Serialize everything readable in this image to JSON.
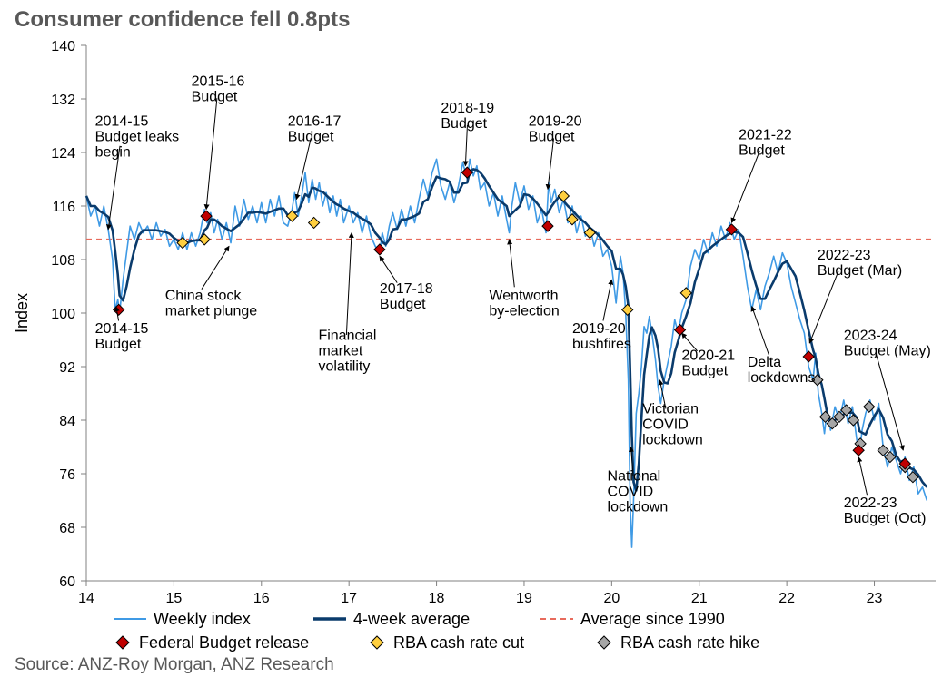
{
  "title": "Consumer confidence fell 0.8pts",
  "source": "Source: ANZ-Roy Morgan, ANZ Research",
  "chart": {
    "type": "line",
    "xlabel": "",
    "ylabel": "Index",
    "xlim": [
      14.0,
      23.7
    ],
    "ylim": [
      60,
      140
    ],
    "xticks": [
      14,
      15,
      16,
      17,
      18,
      19,
      20,
      21,
      22,
      23
    ],
    "yticks": [
      60,
      68,
      76,
      84,
      92,
      100,
      108,
      116,
      124,
      132,
      140
    ],
    "ytick_labels": [
      "60",
      "68",
      "76",
      "84",
      "92",
      "100",
      "108",
      "116",
      "124",
      "132",
      "140"
    ],
    "xtick_labels": [
      "14",
      "15",
      "16",
      "17",
      "18",
      "19",
      "20",
      "21",
      "22",
      "23"
    ],
    "plot_bg": "#ffffff",
    "tick_color": "#808080",
    "axis_color": "#808080",
    "average_since_1990": 111.0,
    "colors": {
      "weekly": "#3f9ae5",
      "avg4": "#0a3b6c",
      "avg_line": "#e86b5c",
      "budget": "#c00000",
      "rate_cut": "#ffcf3f",
      "rate_hike": "#a6a6a6"
    },
    "line_widths": {
      "weekly": 1.6,
      "avg4": 2.6,
      "avg_line": 2.0
    },
    "dash": {
      "avg_line": "6,5"
    },
    "legend": {
      "items": [
        {
          "kind": "line",
          "label": "Weekly index",
          "color": "#3f9ae5",
          "width": 2
        },
        {
          "kind": "line",
          "label": "4-week average",
          "color": "#0a3b6c",
          "width": 3.5
        },
        {
          "kind": "dash",
          "label": "Average since 1990",
          "color": "#e86b5c",
          "width": 2
        },
        {
          "kind": "diamond",
          "label": "Federal Budget release",
          "fill": "#c00000",
          "stroke": "#000000"
        },
        {
          "kind": "diamond",
          "label": "RBA cash rate cut",
          "fill": "#ffcf3f",
          "stroke": "#000000"
        },
        {
          "kind": "diamond",
          "label": "RBA cash rate hike",
          "fill": "#a6a6a6",
          "stroke": "#000000"
        }
      ]
    },
    "weekly": [
      [
        14.0,
        117.5
      ],
      [
        14.05,
        114.5
      ],
      [
        14.1,
        116.0
      ],
      [
        14.15,
        113.0
      ],
      [
        14.2,
        116.0
      ],
      [
        14.25,
        112.5
      ],
      [
        14.3,
        108.0
      ],
      [
        14.33,
        100.5
      ],
      [
        14.36,
        102.0
      ],
      [
        14.38,
        100.0
      ],
      [
        14.42,
        105.0
      ],
      [
        14.46,
        109.0
      ],
      [
        14.5,
        113.0
      ],
      [
        14.55,
        111.0
      ],
      [
        14.6,
        113.5
      ],
      [
        14.65,
        112.0
      ],
      [
        14.7,
        113.0
      ],
      [
        14.75,
        111.0
      ],
      [
        14.8,
        113.5
      ],
      [
        14.85,
        111.5
      ],
      [
        14.9,
        112.5
      ],
      [
        14.95,
        110.0
      ],
      [
        15.0,
        111.0
      ],
      [
        15.05,
        109.5
      ],
      [
        15.1,
        112.0
      ],
      [
        15.15,
        109.5
      ],
      [
        15.2,
        112.0
      ],
      [
        15.25,
        110.0
      ],
      [
        15.3,
        112.0
      ],
      [
        15.35,
        115.5
      ],
      [
        15.38,
        113.5
      ],
      [
        15.42,
        115.0
      ],
      [
        15.46,
        112.0
      ],
      [
        15.5,
        114.0
      ],
      [
        15.55,
        111.0
      ],
      [
        15.6,
        113.5
      ],
      [
        15.65,
        110.5
      ],
      [
        15.7,
        116.0
      ],
      [
        15.75,
        113.0
      ],
      [
        15.8,
        117.0
      ],
      [
        15.85,
        114.0
      ],
      [
        15.9,
        116.0
      ],
      [
        15.95,
        113.5
      ],
      [
        16.0,
        116.5
      ],
      [
        16.05,
        113.5
      ],
      [
        16.1,
        117.0
      ],
      [
        16.15,
        114.5
      ],
      [
        16.2,
        117.5
      ],
      [
        16.25,
        113.5
      ],
      [
        16.3,
        113.0
      ],
      [
        16.35,
        115.5
      ],
      [
        16.38,
        118.0
      ],
      [
        16.42,
        114.5
      ],
      [
        16.46,
        117.5
      ],
      [
        16.5,
        121.0
      ],
      [
        16.54,
        116.5
      ],
      [
        16.58,
        120.0
      ],
      [
        16.62,
        117.0
      ],
      [
        16.66,
        119.5
      ],
      [
        16.7,
        116.0
      ],
      [
        16.74,
        118.0
      ],
      [
        16.78,
        115.0
      ],
      [
        16.82,
        117.5
      ],
      [
        16.86,
        114.5
      ],
      [
        16.9,
        117.0
      ],
      [
        16.94,
        113.5
      ],
      [
        17.0,
        116.0
      ],
      [
        17.05,
        113.5
      ],
      [
        17.1,
        115.0
      ],
      [
        17.15,
        112.0
      ],
      [
        17.2,
        114.5
      ],
      [
        17.25,
        111.5
      ],
      [
        17.3,
        110.0
      ],
      [
        17.35,
        109.0
      ],
      [
        17.38,
        112.0
      ],
      [
        17.42,
        110.0
      ],
      [
        17.46,
        113.0
      ],
      [
        17.5,
        115.0
      ],
      [
        17.55,
        112.5
      ],
      [
        17.6,
        115.5
      ],
      [
        17.65,
        113.0
      ],
      [
        17.7,
        116.0
      ],
      [
        17.75,
        113.5
      ],
      [
        17.8,
        117.0
      ],
      [
        17.85,
        120.0
      ],
      [
        17.9,
        117.5
      ],
      [
        17.95,
        121.0
      ],
      [
        18.0,
        123.0
      ],
      [
        18.05,
        119.0
      ],
      [
        18.1,
        117.0
      ],
      [
        18.15,
        119.5
      ],
      [
        18.2,
        116.5
      ],
      [
        18.25,
        119.0
      ],
      [
        18.3,
        122.5
      ],
      [
        18.35,
        120.0
      ],
      [
        18.38,
        123.0
      ],
      [
        18.42,
        120.5
      ],
      [
        18.46,
        122.0
      ],
      [
        18.5,
        118.5
      ],
      [
        18.55,
        119.5
      ],
      [
        18.6,
        116.0
      ],
      [
        18.65,
        118.0
      ],
      [
        18.7,
        114.5
      ],
      [
        18.75,
        117.5
      ],
      [
        18.8,
        114.0
      ],
      [
        18.83,
        112.0
      ],
      [
        18.86,
        116.0
      ],
      [
        18.9,
        119.5
      ],
      [
        18.95,
        116.5
      ],
      [
        19.0,
        119.0
      ],
      [
        19.05,
        115.5
      ],
      [
        19.1,
        117.5
      ],
      [
        19.15,
        113.5
      ],
      [
        19.2,
        115.5
      ],
      [
        19.25,
        112.0
      ],
      [
        19.28,
        119.5
      ],
      [
        19.31,
        116.5
      ],
      [
        19.35,
        118.5
      ],
      [
        19.4,
        115.0
      ],
      [
        19.45,
        117.0
      ],
      [
        19.5,
        113.5
      ],
      [
        19.55,
        116.0
      ],
      [
        19.6,
        112.0
      ],
      [
        19.65,
        114.5
      ],
      [
        19.7,
        111.5
      ],
      [
        19.75,
        113.0
      ],
      [
        19.8,
        110.0
      ],
      [
        19.85,
        112.0
      ],
      [
        19.9,
        108.5
      ],
      [
        19.95,
        109.5
      ],
      [
        20.0,
        107.0
      ],
      [
        20.05,
        101.5
      ],
      [
        20.1,
        108.5
      ],
      [
        20.13,
        106.0
      ],
      [
        20.16,
        100.0
      ],
      [
        20.19,
        90.0
      ],
      [
        20.21,
        72.0
      ],
      [
        20.23,
        65.0
      ],
      [
        20.25,
        72.0
      ],
      [
        20.28,
        85.0
      ],
      [
        20.31,
        88.0
      ],
      [
        20.34,
        92.0
      ],
      [
        20.37,
        98.0
      ],
      [
        20.4,
        97.0
      ],
      [
        20.43,
        99.5
      ],
      [
        20.46,
        97.0
      ],
      [
        20.5,
        93.0
      ],
      [
        20.53,
        89.0
      ],
      [
        20.56,
        86.5
      ],
      [
        20.6,
        90.0
      ],
      [
        20.64,
        92.5
      ],
      [
        20.68,
        95.0
      ],
      [
        20.72,
        99.0
      ],
      [
        20.76,
        97.0
      ],
      [
        20.8,
        100.0
      ],
      [
        20.85,
        102.0
      ],
      [
        20.9,
        107.0
      ],
      [
        20.95,
        109.5
      ],
      [
        21.0,
        108.0
      ],
      [
        21.05,
        111.0
      ],
      [
        21.1,
        109.0
      ],
      [
        21.15,
        112.0
      ],
      [
        21.2,
        110.0
      ],
      [
        21.25,
        113.0
      ],
      [
        21.3,
        111.0
      ],
      [
        21.35,
        113.5
      ],
      [
        21.4,
        111.0
      ],
      [
        21.45,
        112.5
      ],
      [
        21.5,
        108.5
      ],
      [
        21.55,
        104.0
      ],
      [
        21.6,
        100.5
      ],
      [
        21.65,
        103.5
      ],
      [
        21.7,
        100.5
      ],
      [
        21.75,
        104.0
      ],
      [
        21.8,
        106.0
      ],
      [
        21.85,
        108.5
      ],
      [
        21.9,
        106.0
      ],
      [
        21.95,
        109.0
      ],
      [
        22.0,
        107.5
      ],
      [
        22.05,
        104.0
      ],
      [
        22.1,
        101.5
      ],
      [
        22.15,
        99.0
      ],
      [
        22.2,
        97.0
      ],
      [
        22.25,
        92.0
      ],
      [
        22.3,
        90.0
      ],
      [
        22.33,
        94.0
      ],
      [
        22.36,
        88.0
      ],
      [
        22.4,
        85.0
      ],
      [
        22.43,
        82.0
      ],
      [
        22.46,
        85.5
      ],
      [
        22.5,
        82.5
      ],
      [
        22.55,
        86.0
      ],
      [
        22.6,
        84.0
      ],
      [
        22.65,
        87.0
      ],
      [
        22.7,
        83.5
      ],
      [
        22.75,
        86.0
      ],
      [
        22.8,
        81.0
      ],
      [
        22.83,
        79.0
      ],
      [
        22.86,
        82.5
      ],
      [
        22.9,
        85.0
      ],
      [
        22.95,
        87.0
      ],
      [
        23.0,
        84.0
      ],
      [
        23.05,
        86.5
      ],
      [
        23.1,
        80.0
      ],
      [
        23.15,
        77.0
      ],
      [
        23.2,
        80.0
      ],
      [
        23.25,
        78.0
      ],
      [
        23.3,
        76.0
      ],
      [
        23.35,
        78.5
      ],
      [
        23.4,
        75.0
      ],
      [
        23.45,
        77.0
      ],
      [
        23.5,
        73.0
      ],
      [
        23.55,
        74.0
      ],
      [
        23.6,
        72.0
      ]
    ],
    "budget_markers": [
      {
        "x": 14.37,
        "y": 100.5
      },
      {
        "x": 15.37,
        "y": 114.5
      },
      {
        "x": 17.35,
        "y": 109.5
      },
      {
        "x": 18.35,
        "y": 121.0
      },
      {
        "x": 19.27,
        "y": 113.0
      },
      {
        "x": 20.78,
        "y": 97.5
      },
      {
        "x": 21.37,
        "y": 112.5
      },
      {
        "x": 22.25,
        "y": 93.5
      },
      {
        "x": 22.82,
        "y": 79.5
      },
      {
        "x": 23.35,
        "y": 77.5
      }
    ],
    "rate_cut_markers": [
      {
        "x": 15.1,
        "y": 110.5
      },
      {
        "x": 15.35,
        "y": 111.0
      },
      {
        "x": 16.35,
        "y": 114.5
      },
      {
        "x": 16.6,
        "y": 113.5
      },
      {
        "x": 19.45,
        "y": 117.5
      },
      {
        "x": 19.55,
        "y": 114.0
      },
      {
        "x": 19.75,
        "y": 112.0
      },
      {
        "x": 20.18,
        "y": 100.5
      },
      {
        "x": 20.85,
        "y": 103.0
      }
    ],
    "rate_hike_markers": [
      {
        "x": 22.35,
        "y": 90.0
      },
      {
        "x": 22.44,
        "y": 84.5
      },
      {
        "x": 22.52,
        "y": 83.5
      },
      {
        "x": 22.6,
        "y": 84.5
      },
      {
        "x": 22.68,
        "y": 85.5
      },
      {
        "x": 22.76,
        "y": 84.0
      },
      {
        "x": 22.84,
        "y": 80.5
      },
      {
        "x": 22.94,
        "y": 86.0
      },
      {
        "x": 23.1,
        "y": 79.5
      },
      {
        "x": 23.18,
        "y": 78.5
      },
      {
        "x": 23.35,
        "y": 77.0
      },
      {
        "x": 23.44,
        "y": 75.5
      }
    ],
    "annotations": [
      {
        "text": "2014-15\nBudget leaks\nbegin",
        "tx": 14.1,
        "ty": 128,
        "ax": 14.25,
        "ay": 112.5,
        "anchor": "start"
      },
      {
        "text": "2014-15\nBudget",
        "tx": 14.1,
        "ty": 97,
        "ax": 14.34,
        "ay": 101.0,
        "anchor": "start"
      },
      {
        "text": "2015-16\nBudget",
        "tx": 15.2,
        "ty": 134,
        "ax": 15.37,
        "ay": 115.5,
        "anchor": "start"
      },
      {
        "text": "China stock\nmarket plunge",
        "tx": 14.9,
        "ty": 102,
        "ax": 15.63,
        "ay": 110.0,
        "anchor": "start"
      },
      {
        "text": "2016-17\nBudget",
        "tx": 16.3,
        "ty": 128,
        "ax": 16.4,
        "ay": 117.0,
        "anchor": "start"
      },
      {
        "text": "Financial\nmarket\nvolatility",
        "tx": 16.65,
        "ty": 96,
        "ax": 17.03,
        "ay": 112.0,
        "anchor": "start"
      },
      {
        "text": "2017-18\nBudget",
        "tx": 17.35,
        "ty": 103,
        "ax": 17.35,
        "ay": 108.5,
        "anchor": "start"
      },
      {
        "text": "2018-19\nBudget",
        "tx": 18.05,
        "ty": 130,
        "ax": 18.33,
        "ay": 122.0,
        "anchor": "start"
      },
      {
        "text": "Wentworth\nby-election",
        "tx": 18.6,
        "ty": 102,
        "ax": 18.83,
        "ay": 111.0,
        "anchor": "start"
      },
      {
        "text": "2019-20\nBudget",
        "tx": 19.05,
        "ty": 128,
        "ax": 19.27,
        "ay": 118.5,
        "anchor": "start"
      },
      {
        "text": "2019-20\nbushfires",
        "tx": 19.55,
        "ty": 97,
        "ax": 20.0,
        "ay": 105.0,
        "anchor": "start"
      },
      {
        "text": "National\nCOVID\nlockdown",
        "tx": 19.95,
        "ty": 75,
        "ax": 20.22,
        "ay": 80.0,
        "anchor": "start"
      },
      {
        "text": "Victorian\nCOVID\nlockdown",
        "tx": 20.35,
        "ty": 85,
        "ax": 20.55,
        "ay": 90.0,
        "anchor": "start"
      },
      {
        "text": "2020-21\nBudget",
        "tx": 20.8,
        "ty": 93,
        "ax": 20.8,
        "ay": 97.0,
        "anchor": "start"
      },
      {
        "text": "2021-22\nBudget",
        "tx": 21.45,
        "ty": 126,
        "ax": 21.37,
        "ay": 113.5,
        "anchor": "start"
      },
      {
        "text": "Delta\nlockdowns",
        "tx": 21.55,
        "ty": 92,
        "ax": 21.6,
        "ay": 101.0,
        "anchor": "start"
      },
      {
        "text": "2022-23\nBudget (Mar)",
        "tx": 22.35,
        "ty": 108,
        "ax": 22.26,
        "ay": 95.5,
        "anchor": "start"
      },
      {
        "text": "2022-23\nBudget (Oct)",
        "tx": 22.65,
        "ty": 71,
        "ax": 22.82,
        "ay": 78.5,
        "anchor": "start"
      },
      {
        "text": "2023-24\nBudget (May)",
        "tx": 22.65,
        "ty": 96,
        "ax": 23.33,
        "ay": 79.5,
        "anchor": "start"
      }
    ]
  }
}
